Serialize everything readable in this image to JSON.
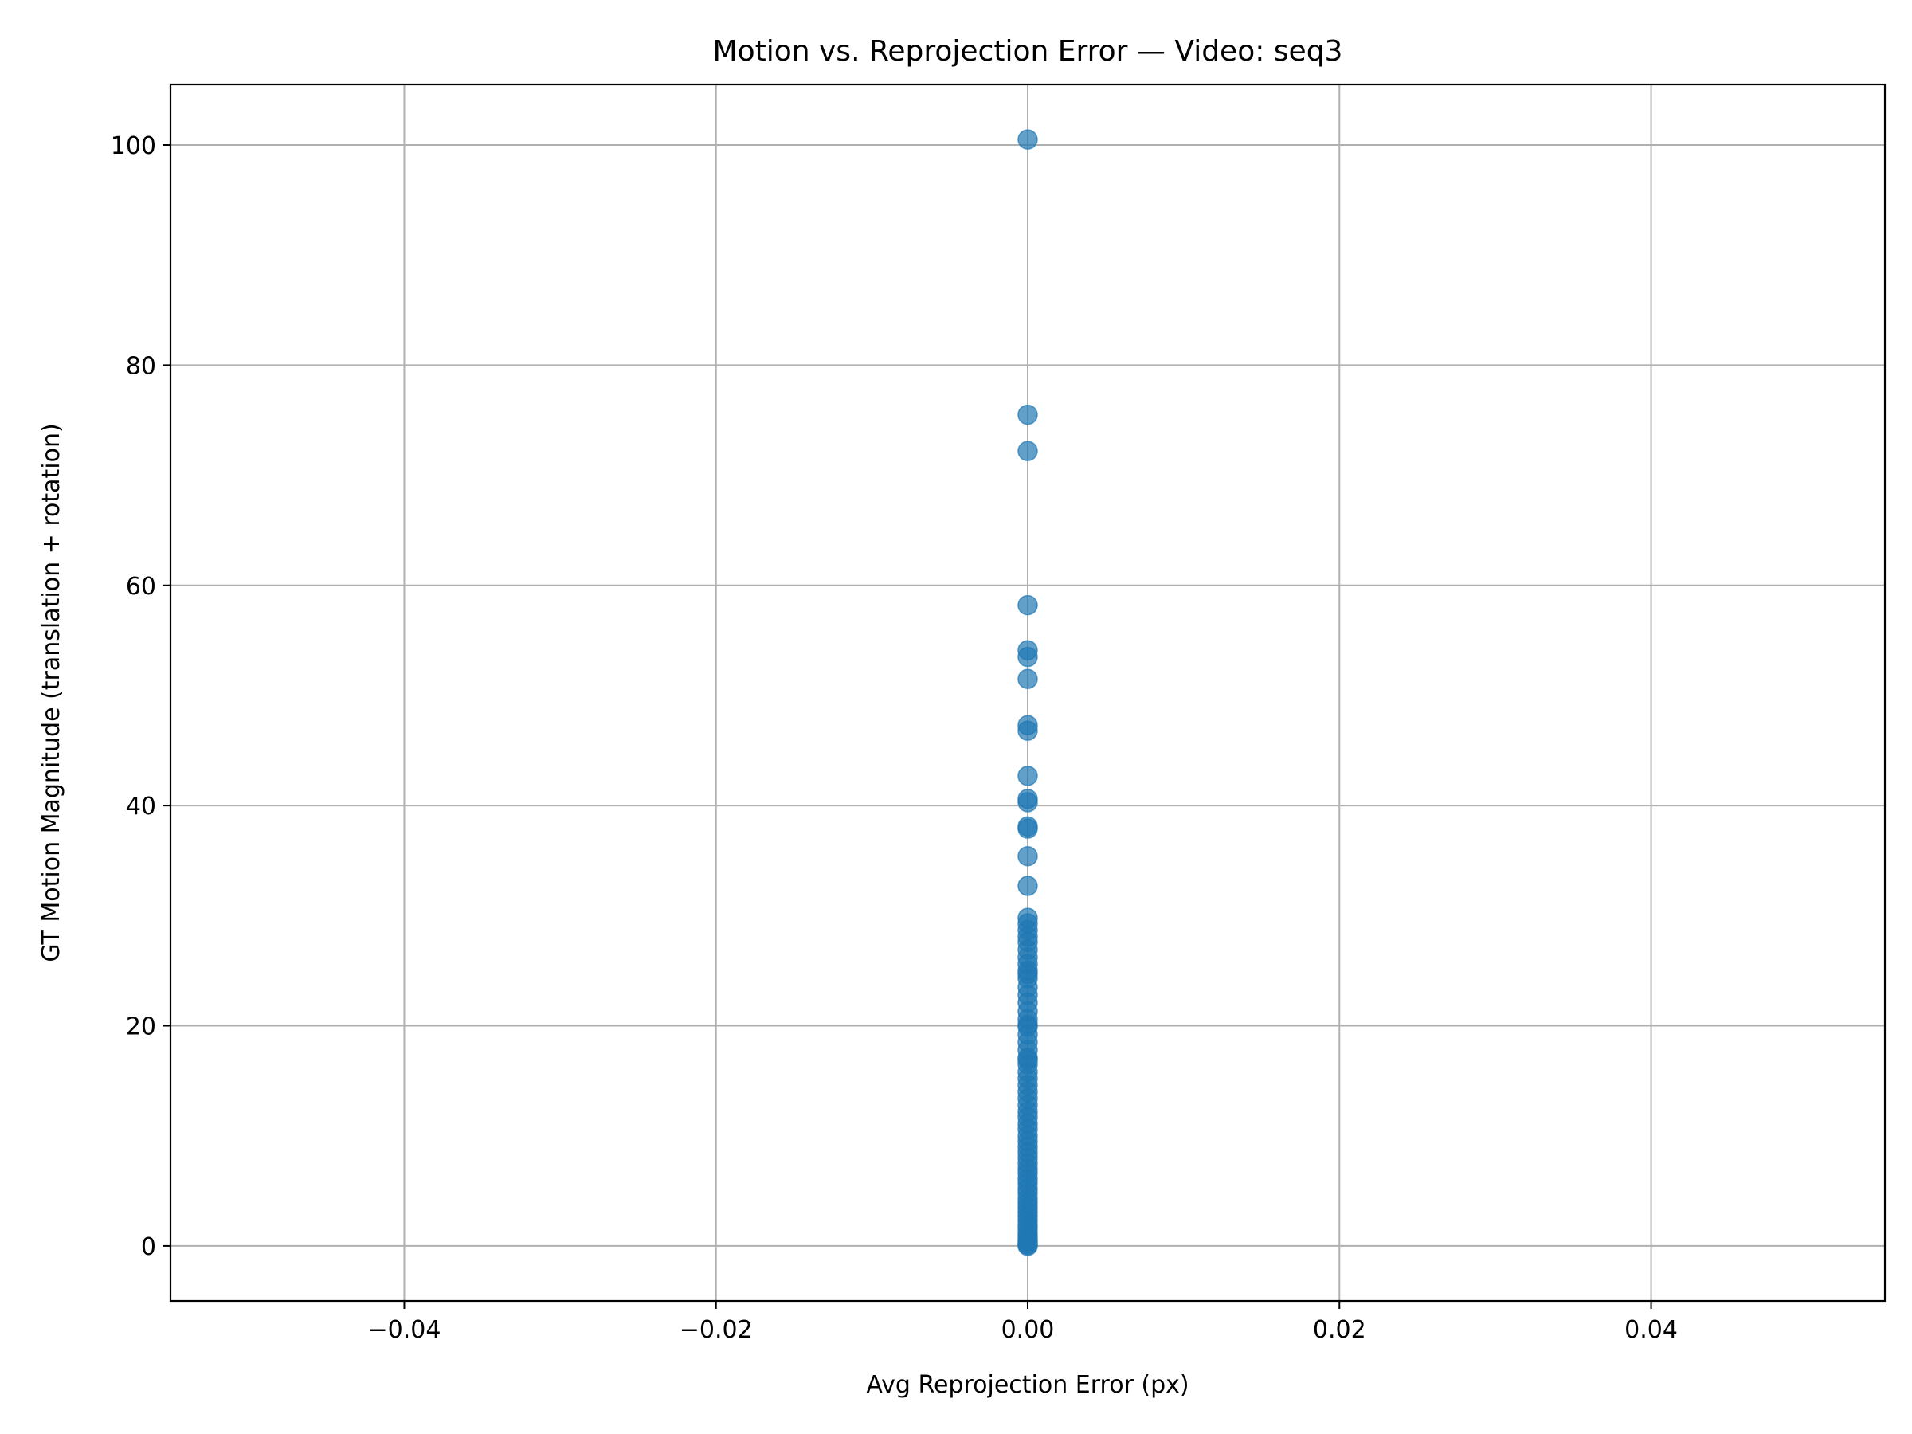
{
  "chart_data": {
    "type": "scatter",
    "title": "Motion vs. Reprojection Error — Video: seq3",
    "xlabel": "Avg Reprojection Error (px)",
    "ylabel": "GT Motion Magnitude (translation + rotation)",
    "xlim": [
      -0.055,
      0.055
    ],
    "ylim": [
      -5,
      105.5
    ],
    "xticks": [
      -0.04,
      -0.02,
      0.0,
      0.02,
      0.04
    ],
    "xtick_labels": [
      "−0.04",
      "−0.02",
      "0.00",
      "0.02",
      "0.04"
    ],
    "yticks": [
      0,
      20,
      40,
      60,
      80,
      100
    ],
    "ytick_labels": [
      "0",
      "20",
      "40",
      "60",
      "80",
      "100"
    ],
    "grid": true,
    "marker_color": "#1f77b4",
    "marker_alpha": 0.7,
    "points": {
      "x": [
        0,
        0,
        0,
        0,
        0,
        0,
        0,
        0,
        0,
        0,
        0,
        0,
        0,
        0,
        0,
        0,
        0,
        0,
        0,
        0,
        0,
        0,
        0,
        0,
        0,
        0,
        0,
        0,
        0,
        0,
        0,
        0,
        0,
        0,
        0,
        0,
        0,
        0,
        0,
        0,
        0,
        0,
        0,
        0,
        0,
        0,
        0,
        0,
        0,
        0,
        0,
        0,
        0,
        0,
        0,
        0,
        0,
        0,
        0,
        0,
        0,
        0,
        0,
        0,
        0,
        0,
        0,
        0,
        0,
        0,
        0,
        0,
        0,
        0,
        0,
        0,
        0
      ],
      "y": [
        100.5,
        75.5,
        72.2,
        58.2,
        54.1,
        53.5,
        51.5,
        47.3,
        46.8,
        42.7,
        40.6,
        40.3,
        38.1,
        37.9,
        35.4,
        32.7,
        29.8,
        29.3,
        28.7,
        28.1,
        27.6,
        26.9,
        26.2,
        25.6,
        25.0,
        24.3,
        23.5,
        22.8,
        22.1,
        21.3,
        20.6,
        19.9,
        19.2,
        18.5,
        17.8,
        17.1,
        16.5,
        15.8,
        15.2,
        14.6,
        14.0,
        13.4,
        12.8,
        12.2,
        11.7,
        11.1,
        10.6,
        10.0,
        9.5,
        9.0,
        8.5,
        8.0,
        7.5,
        7.0,
        6.6,
        6.1,
        5.7,
        5.2,
        4.8,
        4.3,
        3.9,
        3.5,
        3.1,
        2.7,
        2.3,
        1.9,
        1.6,
        1.2,
        0.9,
        0.6,
        0.4,
        0.2,
        0.1,
        0.0,
        16.9,
        20.1,
        24.7
      ]
    }
  }
}
